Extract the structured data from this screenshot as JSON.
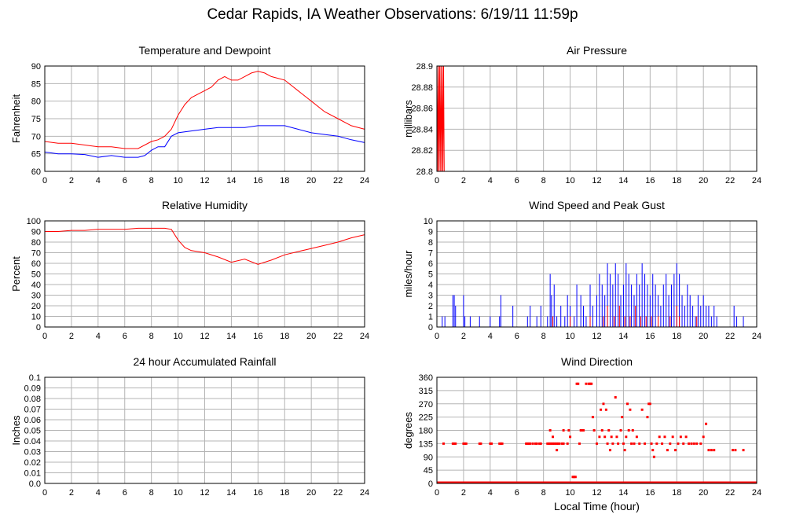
{
  "title": "Cedar Rapids, IA Weather Observations: 6/19/11 11:59p",
  "colors": {
    "primary": "#ff0000",
    "secondary": "#0000ff",
    "grid": "#b4b4b4"
  },
  "chart_data": [
    {
      "id": "temperature",
      "type": "line",
      "title": "Temperature and Dewpoint",
      "xlabel": "",
      "ylabel": "Fahrenheit",
      "xlim": [
        0,
        24
      ],
      "ylim": [
        60,
        90
      ],
      "xticks": [
        0,
        2,
        4,
        6,
        8,
        10,
        12,
        14,
        16,
        18,
        20,
        22,
        24
      ],
      "yticks": [
        60,
        65,
        70,
        75,
        80,
        85,
        90
      ],
      "grid": true,
      "series": [
        {
          "color": "#ff0000",
          "x": [
            0,
            1,
            2,
            3,
            4,
            5,
            6,
            7,
            8,
            8.5,
            9,
            9.5,
            10,
            10.5,
            11,
            12,
            12.5,
            13,
            13.5,
            14,
            14.5,
            15,
            15.5,
            16,
            16.5,
            17,
            18,
            19,
            20,
            21,
            22,
            23,
            24
          ],
          "y": [
            68.5,
            68,
            68,
            67.5,
            67,
            67,
            66.5,
            66.5,
            68.5,
            69,
            70,
            72,
            76,
            79,
            81,
            83,
            84,
            86,
            87,
            86,
            86,
            87,
            88,
            88.5,
            88,
            87,
            86,
            83,
            80,
            77,
            75,
            73,
            72
          ]
        },
        {
          "color": "#0000ff",
          "x": [
            0,
            1,
            2,
            3,
            4,
            5,
            6,
            7,
            7.5,
            8,
            8.5,
            9,
            9.5,
            10,
            11,
            12,
            13,
            14,
            15,
            16,
            17,
            18,
            19,
            20,
            21,
            22,
            23,
            24
          ],
          "y": [
            65.5,
            65,
            65,
            64.8,
            64,
            64.5,
            64,
            64,
            64.5,
            66,
            67,
            67,
            70,
            71,
            71.5,
            72,
            72.5,
            72.5,
            72.5,
            73,
            73,
            73,
            72,
            71,
            70.5,
            70,
            69,
            68.2
          ]
        }
      ]
    },
    {
      "id": "pressure",
      "type": "line",
      "title": "Air Pressure",
      "xlabel": "",
      "ylabel": "millibars",
      "xlim": [
        0,
        24
      ],
      "ylim": [
        28.8,
        28.9
      ],
      "xticks": [
        0,
        2,
        4,
        6,
        8,
        10,
        12,
        14,
        16,
        18,
        20,
        22,
        24
      ],
      "yticks": [
        28.8,
        28.82,
        28.84,
        28.86,
        28.88,
        28.9
      ],
      "grid": true,
      "series": [
        {
          "color": "#ff0000",
          "x": [
            0,
            0.05,
            0.1,
            0.15,
            0.2,
            0.25,
            0.3,
            0.35,
            0.4,
            0.45,
            0.5,
            0.55,
            0.6,
            24
          ],
          "y": [
            28.9,
            28.8,
            28.9,
            28.8,
            28.9,
            28.8,
            28.9,
            28.8,
            28.9,
            28.8,
            28.9,
            28.8,
            28.8,
            28.8
          ]
        }
      ]
    },
    {
      "id": "humidity",
      "type": "line",
      "title": "Relative Humidity",
      "xlabel": "",
      "ylabel": "Percent",
      "xlim": [
        0,
        24
      ],
      "ylim": [
        0,
        100
      ],
      "xticks": [
        0,
        2,
        4,
        6,
        8,
        10,
        12,
        14,
        16,
        18,
        20,
        22,
        24
      ],
      "yticks": [
        0,
        10,
        20,
        30,
        40,
        50,
        60,
        70,
        80,
        90,
        100
      ],
      "grid": true,
      "series": [
        {
          "color": "#ff0000",
          "x": [
            0,
            1,
            2,
            3,
            4,
            5,
            6,
            7,
            8,
            9,
            9.5,
            10,
            10.5,
            11,
            12,
            13,
            14,
            15,
            16,
            17,
            18,
            19,
            20,
            21,
            22,
            23,
            24
          ],
          "y": [
            90,
            90,
            91,
            91,
            92,
            92,
            92,
            93,
            93,
            93,
            92,
            82,
            75,
            72,
            70,
            66,
            61,
            64,
            59,
            63,
            68,
            71,
            74,
            77,
            80,
            84,
            87
          ]
        }
      ]
    },
    {
      "id": "wind-speed",
      "type": "bar",
      "title": "Wind Speed and Peak Gust",
      "xlabel": "",
      "ylabel": "miles/hour",
      "xlim": [
        0,
        24
      ],
      "ylim": [
        0,
        10
      ],
      "xticks": [
        0,
        2,
        4,
        6,
        8,
        10,
        12,
        14,
        16,
        18,
        20,
        22,
        24
      ],
      "yticks": [
        0,
        1,
        2,
        3,
        4,
        5,
        6,
        7,
        8,
        9,
        10
      ],
      "grid": true,
      "series": [
        {
          "color": "#0000ff",
          "x": [
            0.4,
            0.6,
            1.2,
            1.3,
            1.4,
            2,
            2.1,
            2.5,
            3.2,
            4,
            4.7,
            4.8,
            5.7,
            6.8,
            7,
            7.5,
            7.8,
            8.3,
            8.5,
            8.6,
            8.8,
            9,
            9.3,
            9.6,
            9.8,
            10,
            10.3,
            10.5,
            10.8,
            11,
            11.2,
            11.5,
            11.7,
            12,
            12.2,
            12.4,
            12.6,
            12.8,
            13,
            13.2,
            13.4,
            13.6,
            13.8,
            14,
            14.2,
            14.4,
            14.6,
            14.8,
            15,
            15.2,
            15.4,
            15.6,
            15.8,
            16,
            16.2,
            16.4,
            16.6,
            16.8,
            17,
            17.2,
            17.4,
            17.6,
            17.8,
            18,
            18.2,
            18.4,
            18.6,
            18.8,
            19,
            19.2,
            19.4,
            19.6,
            19.8,
            20,
            20.2,
            20.4,
            20.6,
            20.8,
            21,
            22.3,
            22.5,
            23
          ],
          "y": [
            1,
            1,
            3,
            3,
            2,
            3,
            1,
            1,
            1,
            1,
            1,
            3,
            2,
            1,
            2,
            1,
            2,
            1,
            5,
            3,
            4,
            1,
            2,
            1,
            3,
            2,
            1,
            4,
            3,
            2,
            1,
            4,
            2,
            3,
            5,
            4,
            3,
            6,
            5,
            4,
            6,
            5,
            3,
            4,
            6,
            5,
            4,
            3,
            5,
            4,
            6,
            5,
            4,
            3,
            5,
            4,
            3,
            2,
            4,
            5,
            3,
            4,
            5,
            6,
            5,
            3,
            2,
            4,
            3,
            2,
            1,
            3,
            2,
            3,
            2,
            2,
            1,
            2,
            1,
            2,
            1,
            1
          ]
        },
        {
          "color": "#ff0000",
          "x": [
            8.7,
            10,
            11.5,
            12.5,
            12.8,
            13.3,
            13.7,
            14.1,
            14.5,
            14.9,
            15.3,
            15.7,
            16.1,
            16.6,
            17.5,
            18,
            18.2,
            19.5
          ],
          "y": [
            1,
            1,
            1,
            1,
            2,
            1,
            2,
            1,
            1,
            2,
            1,
            1,
            1,
            1,
            1,
            2,
            1,
            1
          ]
        }
      ]
    },
    {
      "id": "rainfall",
      "type": "line",
      "title": "24 hour Accumulated Rainfall",
      "xlabel": "",
      "ylabel": "Inches",
      "xlim": [
        0,
        24
      ],
      "ylim": [
        0,
        0.1
      ],
      "xticks": [
        0,
        2,
        4,
        6,
        8,
        10,
        12,
        14,
        16,
        18,
        20,
        22,
        24
      ],
      "yticks": [
        0.0,
        0.01,
        0.02,
        0.03,
        0.04,
        0.05,
        0.06,
        0.07,
        0.08,
        0.09,
        0.1
      ],
      "ytick_labels": [
        "0.0",
        "0.01",
        "0.02",
        "0.03",
        "0.04",
        "0.05",
        "0.06",
        "0.07",
        "0.08",
        "0.09",
        "0.1"
      ],
      "grid": true,
      "series": [
        {
          "color": "#ff0000",
          "x": [
            0,
            24
          ],
          "y": [
            0,
            0
          ]
        }
      ]
    },
    {
      "id": "wind-direction",
      "type": "scatter",
      "title": "Wind Direction",
      "xlabel": "Local Time (hour)",
      "ylabel": "degrees",
      "xlim": [
        0,
        24
      ],
      "ylim": [
        0,
        360
      ],
      "xticks": [
        0,
        2,
        4,
        6,
        8,
        10,
        12,
        14,
        16,
        18,
        20,
        22,
        24
      ],
      "yticks": [
        0,
        45,
        90,
        135,
        180,
        225,
        270,
        315,
        360
      ],
      "grid": true,
      "baseline": {
        "value": 0,
        "from": 0,
        "to": 24
      },
      "series": [
        {
          "color": "#ff0000",
          "points": [
            [
              0.5,
              135
            ],
            [
              1.2,
              135
            ],
            [
              1.3,
              135
            ],
            [
              1.4,
              135
            ],
            [
              2.0,
              135
            ],
            [
              2.1,
              135
            ],
            [
              2.2,
              135
            ],
            [
              3.2,
              135
            ],
            [
              3.3,
              135
            ],
            [
              4.0,
              135
            ],
            [
              4.1,
              135
            ],
            [
              4.7,
              135
            ],
            [
              4.8,
              135
            ],
            [
              4.9,
              135
            ],
            [
              6.7,
              135
            ],
            [
              6.8,
              135
            ],
            [
              6.9,
              135
            ],
            [
              7.0,
              135
            ],
            [
              7.2,
              135
            ],
            [
              7.4,
              135
            ],
            [
              7.5,
              135
            ],
            [
              7.7,
              135
            ],
            [
              7.8,
              135
            ],
            [
              8.3,
              135
            ],
            [
              8.4,
              135
            ],
            [
              8.5,
              135
            ],
            [
              8.6,
              135
            ],
            [
              8.7,
              135
            ],
            [
              8.8,
              135
            ],
            [
              8.9,
              135
            ],
            [
              9.0,
              135
            ],
            [
              9.1,
              135
            ],
            [
              9.2,
              135
            ],
            [
              9.4,
              135
            ],
            [
              9.5,
              135
            ],
            [
              8.5,
              180
            ],
            [
              8.7,
              158
            ],
            [
              9.0,
              113
            ],
            [
              9.5,
              180
            ],
            [
              9.8,
              135
            ],
            [
              9.9,
              180
            ],
            [
              10.0,
              158
            ],
            [
              10.2,
              22
            ],
            [
              10.3,
              22
            ],
            [
              10.4,
              22
            ],
            [
              10.5,
              338
            ],
            [
              10.6,
              338
            ],
            [
              10.7,
              135
            ],
            [
              10.8,
              180
            ],
            [
              10.9,
              180
            ],
            [
              11.0,
              180
            ],
            [
              11.2,
              338
            ],
            [
              11.4,
              338
            ],
            [
              11.5,
              338
            ],
            [
              11.6,
              338
            ],
            [
              11.7,
              225
            ],
            [
              11.8,
              180
            ],
            [
              12.0,
              135
            ],
            [
              12.2,
              158
            ],
            [
              12.3,
              250
            ],
            [
              12.4,
              180
            ],
            [
              12.5,
              270
            ],
            [
              12.6,
              158
            ],
            [
              12.7,
              250
            ],
            [
              12.8,
              135
            ],
            [
              12.9,
              180
            ],
            [
              13.0,
              113
            ],
            [
              13.1,
              158
            ],
            [
              13.2,
              135
            ],
            [
              13.4,
              292
            ],
            [
              13.5,
              158
            ],
            [
              13.6,
              135
            ],
            [
              13.8,
              180
            ],
            [
              13.9,
              225
            ],
            [
              14.0,
              135
            ],
            [
              14.1,
              113
            ],
            [
              14.2,
              158
            ],
            [
              14.3,
              270
            ],
            [
              14.4,
              180
            ],
            [
              14.5,
              250
            ],
            [
              14.6,
              135
            ],
            [
              14.7,
              180
            ],
            [
              14.8,
              135
            ],
            [
              15.0,
              158
            ],
            [
              15.2,
              135
            ],
            [
              15.4,
              250
            ],
            [
              15.6,
              135
            ],
            [
              15.8,
              225
            ],
            [
              15.9,
              270
            ],
            [
              16.0,
              270
            ],
            [
              16.1,
              135
            ],
            [
              16.2,
              113
            ],
            [
              16.3,
              90
            ],
            [
              16.5,
              135
            ],
            [
              16.7,
              158
            ],
            [
              16.9,
              135
            ],
            [
              17.1,
              158
            ],
            [
              17.3,
              113
            ],
            [
              17.5,
              135
            ],
            [
              17.7,
              158
            ],
            [
              17.9,
              113
            ],
            [
              18.1,
              135
            ],
            [
              18.3,
              158
            ],
            [
              18.5,
              135
            ],
            [
              18.7,
              158
            ],
            [
              18.9,
              135
            ],
            [
              19.1,
              135
            ],
            [
              19.3,
              135
            ],
            [
              19.5,
              135
            ],
            [
              19.8,
              135
            ],
            [
              20.0,
              158
            ],
            [
              20.2,
              202
            ],
            [
              20.4,
              113
            ],
            [
              20.6,
              113
            ],
            [
              20.8,
              113
            ],
            [
              22.2,
              113
            ],
            [
              22.4,
              113
            ],
            [
              23.0,
              113
            ]
          ]
        }
      ]
    }
  ]
}
